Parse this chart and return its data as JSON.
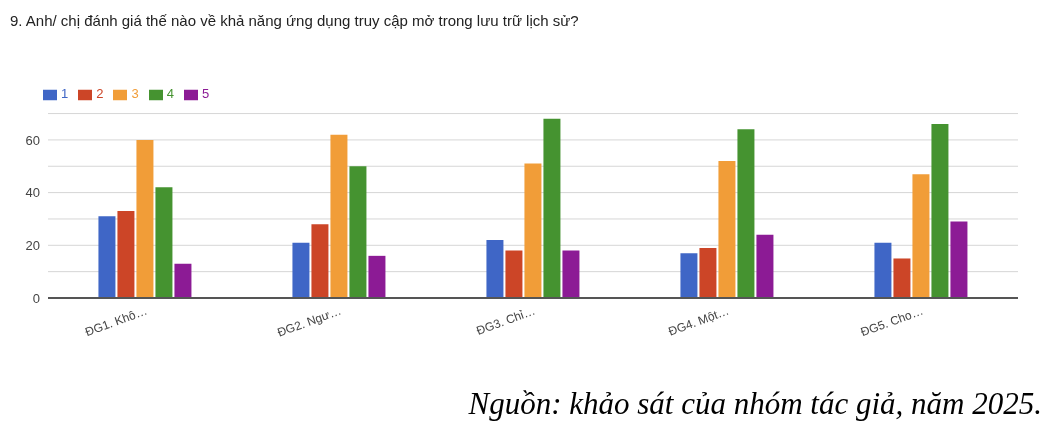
{
  "chart_data": {
    "type": "bar",
    "title": "9. Anh/ chị đánh giá thế nào về khả năng ứng dụng truy cập mở trong lưu trữ lịch sử?",
    "categories": [
      "ĐG1. Khô…",
      "ĐG2. Ngư…",
      "ĐG3. Chỉ…",
      "ĐG4. Một…",
      "ĐG5. Cho…"
    ],
    "series": [
      {
        "name": "1",
        "color": "#3f66c6",
        "values": [
          31,
          21,
          22,
          17,
          21
        ]
      },
      {
        "name": "2",
        "color": "#cc4527",
        "values": [
          33,
          28,
          18,
          19,
          15
        ]
      },
      {
        "name": "3",
        "color": "#f19d38",
        "values": [
          60,
          62,
          51,
          52,
          47
        ]
      },
      {
        "name": "4",
        "color": "#459330",
        "values": [
          42,
          50,
          68,
          64,
          66
        ]
      },
      {
        "name": "5",
        "color": "#8c1b95",
        "values": [
          13,
          16,
          18,
          24,
          29
        ]
      }
    ],
    "ylim": [
      0,
      70
    ],
    "yticks": [
      0,
      {
        "value": 10,
        "label": null
      },
      20,
      {
        "value": 30,
        "label": null
      },
      40,
      {
        "value": 50,
        "label": null
      },
      60,
      {
        "value": 70,
        "label": null
      }
    ],
    "grid": "y",
    "legend": "top left",
    "annotations": [
      "Nguồn: khảo sát của nhóm tác giả, năm 2025."
    ]
  }
}
